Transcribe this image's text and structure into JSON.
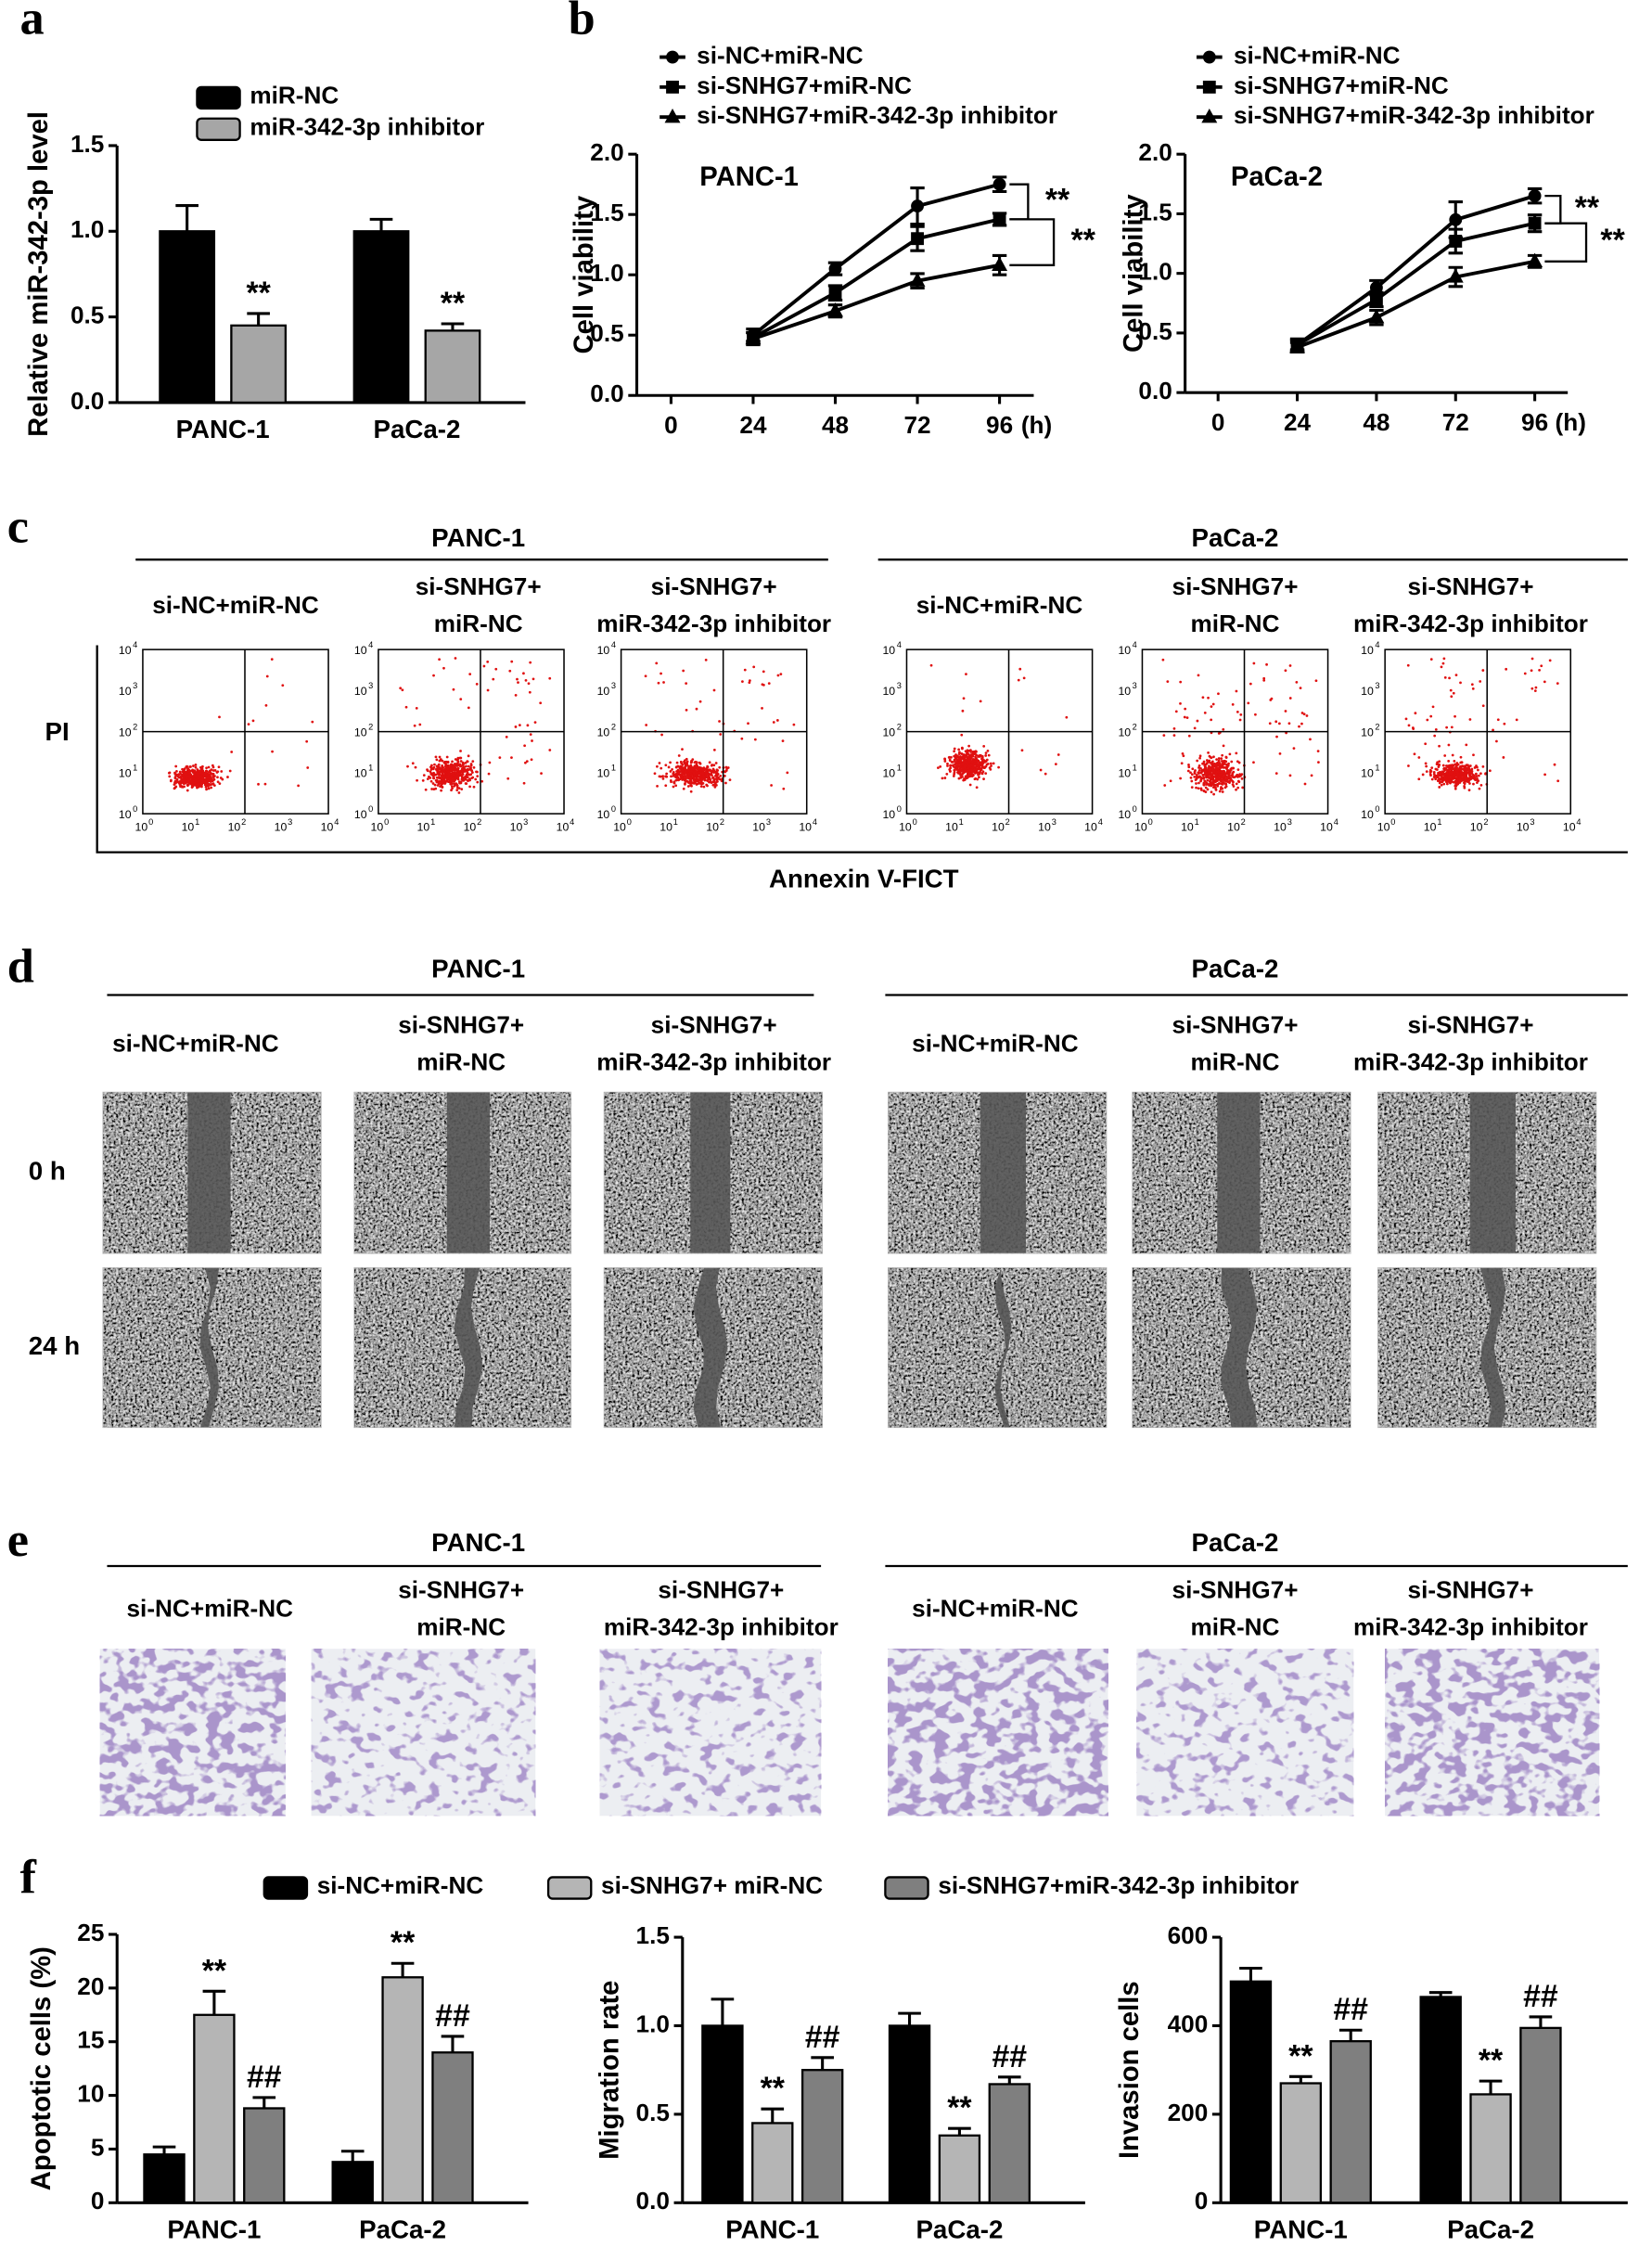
{
  "chart_data": [
    {
      "type": "bar",
      "panel": "a",
      "y_label": "Relative miR-342-3p level",
      "categories": [
        "PANC-1",
        "PaCa-2"
      ],
      "series": [
        {
          "name": "miR-NC",
          "color": "#000000",
          "values": [
            1.0,
            1.0
          ],
          "errors": [
            0.15,
            0.07
          ]
        },
        {
          "name": "miR-342-3p inhibitor",
          "color": "#a6a6a6",
          "values": [
            0.45,
            0.42
          ],
          "errors": [
            0.07,
            0.04
          ],
          "annotations": [
            "**",
            "**"
          ]
        }
      ],
      "ylim": [
        0,
        1.5
      ],
      "yticks": [
        {
          "value": 0,
          "label": "0.0"
        },
        {
          "value": 0.5,
          "label": "0.5"
        },
        {
          "value": 1,
          "label": "1.0"
        },
        {
          "value": 1.5,
          "label": "1.5"
        }
      ]
    },
    {
      "type": "line",
      "panel": "b",
      "label": "PANC-1",
      "y_label": "Cell viability",
      "x_label": "(h)",
      "x": [
        24,
        48,
        72,
        96
      ],
      "xlim": [
        -10,
        106
      ],
      "xticks": [
        0,
        24,
        48,
        72,
        96
      ],
      "ylim": [
        0,
        2
      ],
      "yticks": [
        {
          "value": 0,
          "label": "0.0"
        },
        {
          "value": 0.5,
          "label": "0.5"
        },
        {
          "value": 1,
          "label": "1.0"
        },
        {
          "value": 1.5,
          "label": "1.5"
        },
        {
          "value": 2,
          "label": "2.0"
        }
      ],
      "series": [
        {
          "name": "si-NC+miR-NC",
          "marker": "circle",
          "color": "#000000",
          "values": [
            0.5,
            1.05,
            1.57,
            1.75
          ],
          "errors": [
            0.05,
            0.05,
            0.15,
            0.06
          ]
        },
        {
          "name": "si-SNHG7+miR-NC",
          "marker": "square",
          "color": "#000000",
          "values": [
            0.48,
            0.85,
            1.3,
            1.46
          ],
          "errors": [
            0.04,
            0.06,
            0.1,
            0.05
          ]
        },
        {
          "name": "si-SNHG7+miR-342-3p inhibitor",
          "marker": "triangle",
          "color": "#000000",
          "values": [
            0.47,
            0.7,
            0.95,
            1.08
          ],
          "errors": [
            0.05,
            0.05,
            0.06,
            0.08
          ]
        }
      ],
      "annotations": [
        "**",
        "**"
      ]
    },
    {
      "type": "line",
      "label": "PaCa-2",
      "y_label": "Cell viability",
      "x_label": "(h)",
      "x": [
        24,
        48,
        72,
        96
      ],
      "xlim": [
        -10,
        106
      ],
      "xticks": [
        0,
        24,
        48,
        72,
        96
      ],
      "ylim": [
        0,
        2
      ],
      "yticks": [
        {
          "value": 0,
          "label": "0.0"
        },
        {
          "value": 0.5,
          "label": "0.5"
        },
        {
          "value": 1,
          "label": "1.0"
        },
        {
          "value": 1.5,
          "label": "1.5"
        },
        {
          "value": 2,
          "label": "2.0"
        }
      ],
      "series": [
        {
          "name": "si-NC+miR-NC",
          "marker": "circle",
          "color": "#000000",
          "values": [
            0.4,
            0.88,
            1.45,
            1.65
          ],
          "errors": [
            0.05,
            0.06,
            0.15,
            0.06
          ]
        },
        {
          "name": "si-SNHG7+miR-NC",
          "marker": "square",
          "color": "#000000",
          "values": [
            0.4,
            0.78,
            1.27,
            1.42
          ],
          "errors": [
            0.04,
            0.06,
            0.1,
            0.07
          ]
        },
        {
          "name": "si-SNHG7+miR-342-3p inhibitor",
          "marker": "triangle",
          "color": "#000000",
          "values": [
            0.38,
            0.63,
            0.97,
            1.1
          ],
          "errors": [
            0.04,
            0.06,
            0.08,
            0.05
          ]
        }
      ],
      "annotations": [
        "**",
        "**"
      ]
    },
    {
      "type": "bar",
      "panel": "f",
      "y_label": "Apoptotic cells (%)",
      "categories": [
        "PANC-1",
        "PaCa-2"
      ],
      "series": [
        {
          "name": "si-NC+miR-NC",
          "color": "#000000",
          "values": [
            4.5,
            3.8
          ],
          "errors": [
            0.7,
            1.0
          ]
        },
        {
          "name": "si-SNHG7+ miR-NC",
          "color": "#b5b5b5",
          "values": [
            17.5,
            21
          ],
          "errors": [
            2.2,
            1.3
          ],
          "annotations": [
            "**",
            "**"
          ]
        },
        {
          "name": "si-SNHG7+miR-342-3p inhibitor",
          "color": "#7f7f7f",
          "values": [
            8.8,
            14
          ],
          "errors": [
            1.0,
            1.5
          ],
          "annotations": [
            "##",
            "##"
          ]
        }
      ],
      "ylim": [
        0,
        25
      ],
      "yticks": [
        0,
        5,
        10,
        15,
        20,
        25
      ]
    },
    {
      "type": "bar",
      "y_label": "Migration rate",
      "categories": [
        "PANC-1",
        "PaCa-2"
      ],
      "series": [
        {
          "color": "#000000",
          "values": [
            1.0,
            1.0
          ],
          "errors": [
            0.15,
            0.07
          ]
        },
        {
          "color": "#b5b5b5",
          "values": [
            0.45,
            0.38
          ],
          "errors": [
            0.08,
            0.04
          ],
          "annotations": [
            "**",
            "**"
          ]
        },
        {
          "color": "#7f7f7f",
          "values": [
            0.75,
            0.67
          ],
          "errors": [
            0.07,
            0.04
          ],
          "annotations": [
            "##",
            "##"
          ]
        }
      ],
      "ylim": [
        0,
        1.5
      ],
      "yticks": [
        {
          "value": 0,
          "label": "0.0"
        },
        {
          "value": 0.5,
          "label": "0.5"
        },
        {
          "value": 1,
          "label": "1.0"
        },
        {
          "value": 1.5,
          "label": "1.5"
        }
      ]
    },
    {
      "type": "bar",
      "y_label": "Invasion cells",
      "categories": [
        "PANC-1",
        "PaCa-2"
      ],
      "series": [
        {
          "color": "#000000",
          "values": [
            500,
            465
          ],
          "errors": [
            30,
            10
          ]
        },
        {
          "color": "#b5b5b5",
          "values": [
            270,
            245
          ],
          "errors": [
            15,
            30
          ],
          "annotations": [
            "**",
            "**"
          ]
        },
        {
          "color": "#7f7f7f",
          "values": [
            365,
            395
          ],
          "errors": [
            25,
            25
          ],
          "annotations": [
            "##",
            "##"
          ]
        }
      ],
      "ylim": [
        0,
        600
      ],
      "yticks": [
        0,
        200,
        400,
        600
      ]
    }
  ],
  "panel_c": {
    "letter": "c",
    "groups": [
      {
        "title": "PANC-1",
        "conditions": [
          [
            "si-NC+miR-NC"
          ],
          [
            "si-SNHG7+",
            "miR-NC"
          ],
          [
            "si-SNHG7+",
            "miR-342-3p inhibitor"
          ]
        ]
      },
      {
        "title": "PaCa-2",
        "conditions": [
          [
            "si-NC+miR-NC"
          ],
          [
            "si-SNHG7+",
            "miR-NC"
          ],
          [
            "si-SNHG7+",
            "miR-342-3p inhibitor"
          ]
        ]
      }
    ],
    "y_label": "PI",
    "x_label": "Annexin V-FICT",
    "tick_base": "10",
    "tick_exponents": [
      "0",
      "1",
      "2",
      "3",
      "4"
    ]
  },
  "panel_d": {
    "letter": "d",
    "groups": [
      {
        "title": "PANC-1",
        "conditions": [
          [
            "si-NC+miR-NC"
          ],
          [
            "si-SNHG7+",
            "miR-NC"
          ],
          [
            "si-SNHG7+",
            "miR-342-3p inhibitor"
          ]
        ]
      },
      {
        "title": "PaCa-2",
        "conditions": [
          [
            "si-NC+miR-NC"
          ],
          [
            "si-SNHG7+",
            "miR-NC"
          ],
          [
            "si-SNHG7+",
            "miR-342-3p inhibitor"
          ]
        ]
      }
    ],
    "row_labels": [
      "0 h",
      "24 h"
    ]
  },
  "panel_e": {
    "letter": "e",
    "groups": [
      {
        "title": "PANC-1",
        "conditions": [
          [
            "si-NC+miR-NC"
          ],
          [
            "si-SNHG7+",
            "miR-NC"
          ],
          [
            "si-SNHG7+",
            "miR-342-3p inhibitor"
          ]
        ]
      },
      {
        "title": "PaCa-2",
        "conditions": [
          [
            "si-NC+miR-NC"
          ],
          [
            "si-SNHG7+",
            "miR-NC"
          ],
          [
            "si-SNHG7+",
            "miR-342-3p inhibitor"
          ]
        ]
      }
    ]
  }
}
